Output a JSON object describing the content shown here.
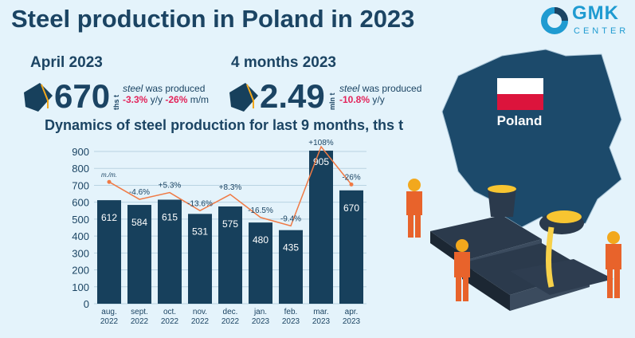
{
  "title": "Steel production in Poland in 2023",
  "logo": {
    "name": "GMK",
    "sub": "CENTER",
    "watermark": "GMK CENTER"
  },
  "april": {
    "heading": "April 2023",
    "value": "670",
    "unit": "ths t",
    "steel": "steel",
    "text": " was produced",
    "yy": "-3.3%",
    "yy_label": " y/y ",
    "mm": "-26%",
    "mm_label": " m/m"
  },
  "four_months": {
    "heading": "4 months 2023",
    "value": "2.49",
    "unit": "mln t",
    "steel": "steel",
    "text": " was produced",
    "yy": "-10.8%",
    "yy_label": " y/y"
  },
  "map": {
    "label": "Poland"
  },
  "colors": {
    "bar": "#17405c",
    "line": "#f07a45",
    "accent": "#e3245b",
    "title": "#1b4463",
    "flag_red": "#dc143c"
  },
  "chart_data": {
    "type": "bar",
    "title": "Dynamics of steel production for last 9 months, ths t",
    "categories": [
      [
        "aug.",
        "2022"
      ],
      [
        "sept.",
        "2022"
      ],
      [
        "oct.",
        "2022"
      ],
      [
        "nov.",
        "2022"
      ],
      [
        "dec.",
        "2022"
      ],
      [
        "jan.",
        "2023"
      ],
      [
        "feb.",
        "2023"
      ],
      [
        "mar.",
        "2023"
      ],
      [
        "apr.",
        "2023"
      ]
    ],
    "values": [
      612,
      584,
      615,
      531,
      575,
      480,
      435,
      905,
      670
    ],
    "ylim": [
      0,
      900
    ],
    "yticks": [
      0,
      100,
      200,
      300,
      400,
      500,
      600,
      700,
      800,
      900
    ],
    "grid": true,
    "line_series": {
      "name": "m./m.",
      "labels": [
        "m./m.",
        "-4.6%",
        "+5.3%",
        "-13.6%",
        "+8.3%",
        "-16.5%",
        "-9.4%",
        "+108%",
        "-26%"
      ]
    }
  }
}
